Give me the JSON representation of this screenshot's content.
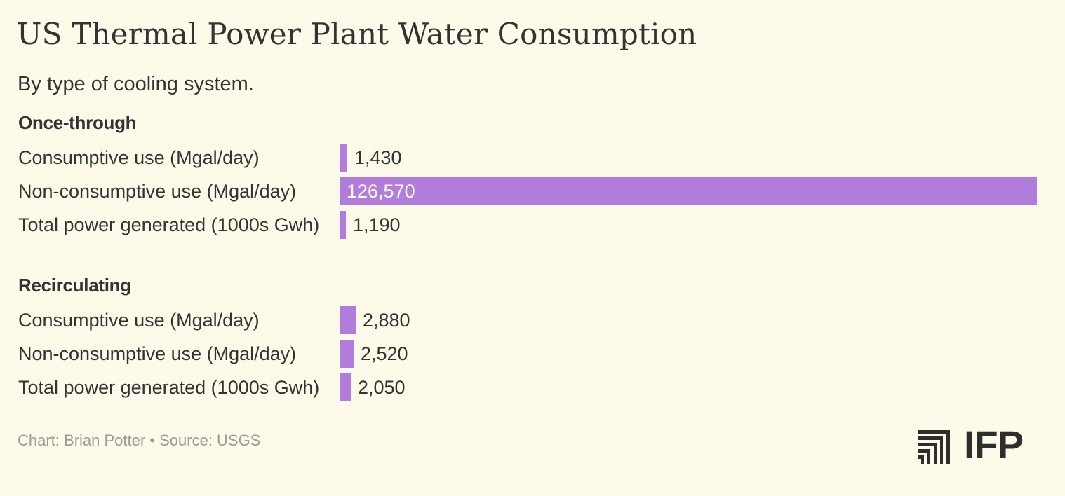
{
  "chart_data": {
    "type": "bar",
    "orientation": "horizontal",
    "title": "US Thermal Power Plant Water Consumption",
    "subtitle": "By type of cooling system.",
    "xlim": [
      0,
      126570
    ],
    "groups": [
      {
        "name": "Once-through",
        "categories": [
          "Consumptive use (Mgal/day)",
          "Non-consumptive use (Mgal/day)",
          "Total power generated (1000s Gwh)"
        ],
        "values": [
          1430,
          126570,
          1190
        ],
        "labels": [
          "1,430",
          "126,570",
          "1,190"
        ]
      },
      {
        "name": "Recirculating",
        "categories": [
          "Consumptive use (Mgal/day)",
          "Non-consumptive use (Mgal/day)",
          "Total power generated (1000s Gwh)"
        ],
        "values": [
          2880,
          2520,
          2050
        ],
        "labels": [
          "2,880",
          "2,520",
          "2,050"
        ]
      }
    ],
    "bar_color": "#B27CDC"
  },
  "footer": {
    "credit": "Chart: Brian Potter • Source: USGS"
  },
  "logo": {
    "text": "IFP"
  }
}
